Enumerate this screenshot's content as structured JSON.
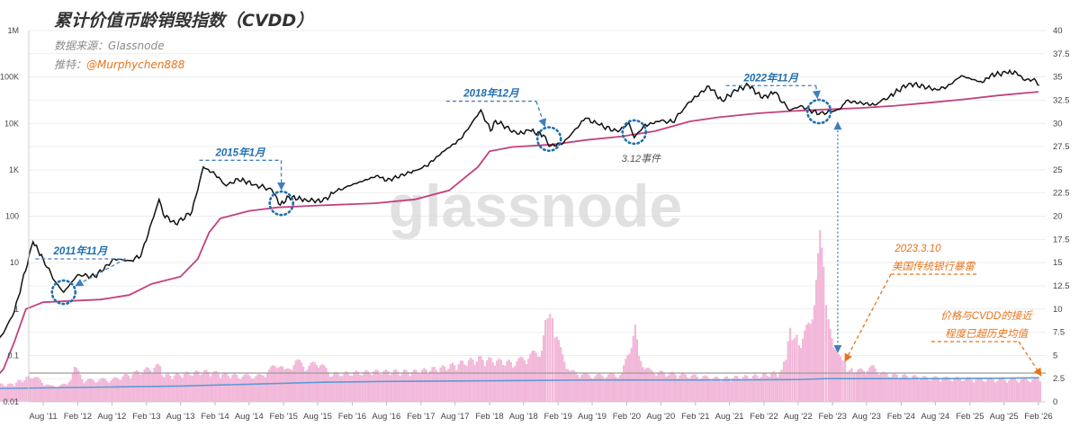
{
  "header": {
    "title": "累计价值币龄销毁指数（CVDD）",
    "source_label": "数据来源：",
    "source_value": "Glassnode",
    "twitter_label": "推特：",
    "twitter_handle": "@Murphychen888"
  },
  "watermark": "glassnode",
  "colors": {
    "price": "#111111",
    "cvdd": "#c4407f",
    "ratio_bar": "#f2b8d9",
    "ratio_line": "#5b9bd5",
    "annotation_blue": "#1f6fb2",
    "annotation_orange": "#e8731a",
    "grid": "#e6e6e6",
    "reference": "#9a9a9a"
  },
  "chart_data": {
    "type": "line",
    "left_axis": {
      "scale": "log",
      "ticks": [
        0.01,
        0.1,
        1,
        10,
        100,
        1000,
        10000,
        100000,
        1000000
      ],
      "tick_labels": [
        "0.01",
        "0.1",
        "1",
        "10",
        "100",
        "1K",
        "10K",
        "100K",
        "1M"
      ]
    },
    "right_axis": {
      "scale": "linear",
      "range": [
        0,
        40
      ],
      "ticks": [
        0,
        2.5,
        5,
        7.5,
        10,
        12.5,
        15,
        17.5,
        20,
        22.5,
        25,
        27.5,
        30,
        32.5,
        35,
        37.5,
        40
      ],
      "tick_labels": [
        "0",
        "2.5",
        "5",
        "7.5",
        "10",
        "12.5",
        "15",
        "17.5",
        "20",
        "22.5",
        "25",
        "27.5",
        "30",
        "32.5",
        "35",
        "37.5",
        "40"
      ]
    },
    "x_axis": {
      "tick_dates": [
        "2011-08",
        "2012-02",
        "2012-08",
        "2013-02",
        "2013-08",
        "2014-02",
        "2014-08",
        "2015-02",
        "2015-08",
        "2016-02",
        "2016-08",
        "2017-02",
        "2017-08",
        "2018-02",
        "2018-08",
        "2019-02",
        "2019-08",
        "2020-02",
        "2020-08",
        "2021-02",
        "2021-08",
        "2022-02",
        "2022-08",
        "2023-02",
        "2023-08",
        "2024-02",
        "2024-08",
        "2025-02",
        "2025-08",
        "2026-02"
      ],
      "tick_labels": [
        "Aug '11",
        "Feb '12",
        "Aug '12",
        "Feb '13",
        "Aug '13",
        "Feb '14",
        "Aug '14",
        "Feb '15",
        "Aug '15",
        "Feb '16",
        "Aug '16",
        "Feb '17",
        "Aug '17",
        "Feb '18",
        "Aug '18",
        "Feb '19",
        "Aug '19",
        "Feb '20",
        "Aug '20",
        "Feb '21",
        "Aug '21",
        "Feb '22",
        "Aug '22",
        "Feb '23",
        "Aug '23",
        "Feb '24",
        "Aug '24",
        "Feb '25",
        "Aug '25",
        "Feb '26"
      ]
    },
    "grid": true,
    "reference_line_value": 3.1,
    "series": [
      {
        "kind": "price",
        "axis": "left",
        "points": [
          [
            "2010-08-01",
            0.07
          ],
          [
            "2010-10-01",
            0.1
          ],
          [
            "2011-01-01",
            0.3
          ],
          [
            "2011-03-01",
            0.9
          ],
          [
            "2011-06-08",
            28
          ],
          [
            "2011-08-01",
            12
          ],
          [
            "2011-10-01",
            4
          ],
          [
            "2011-11-18",
            2.3
          ],
          [
            "2012-02-01",
            5.5
          ],
          [
            "2012-05-01",
            5
          ],
          [
            "2012-08-15",
            12
          ],
          [
            "2012-11-01",
            11
          ],
          [
            "2013-01-01",
            13.5
          ],
          [
            "2013-04-09",
            230
          ],
          [
            "2013-05-01",
            110
          ],
          [
            "2013-07-05",
            68
          ],
          [
            "2013-10-01",
            125
          ],
          [
            "2013-11-30",
            1150
          ],
          [
            "2014-02-01",
            800
          ],
          [
            "2014-04-01",
            450
          ],
          [
            "2014-06-01",
            640
          ],
          [
            "2014-09-01",
            480
          ],
          [
            "2014-12-01",
            370
          ],
          [
            "2015-01-14",
            175
          ],
          [
            "2015-03-01",
            260
          ],
          [
            "2015-06-01",
            225
          ],
          [
            "2015-08-25",
            210
          ],
          [
            "2015-11-01",
            330
          ],
          [
            "2016-01-01",
            430
          ],
          [
            "2016-06-17",
            750
          ],
          [
            "2016-08-01",
            580
          ],
          [
            "2016-12-31",
            965
          ],
          [
            "2017-03-01",
            1200
          ],
          [
            "2017-06-01",
            2500
          ],
          [
            "2017-09-01",
            4600
          ],
          [
            "2017-12-17",
            19500
          ],
          [
            "2018-02-06",
            6900
          ],
          [
            "2018-03-05",
            11500
          ],
          [
            "2018-06-29",
            5900
          ],
          [
            "2018-09-01",
            7000
          ],
          [
            "2018-11-15",
            5600
          ],
          [
            "2018-12-15",
            3200
          ],
          [
            "2019-03-01",
            3800
          ],
          [
            "2019-06-26",
            12900
          ],
          [
            "2019-09-01",
            9500
          ],
          [
            "2019-12-17",
            6600
          ],
          [
            "2020-02-13",
            10300
          ],
          [
            "2020-03-12",
            4900
          ],
          [
            "2020-05-01",
            8800
          ],
          [
            "2020-08-01",
            11500
          ],
          [
            "2020-10-01",
            10600
          ],
          [
            "2020-12-31",
            29000
          ],
          [
            "2021-04-14",
            63000
          ],
          [
            "2021-06-22",
            31000
          ],
          [
            "2021-09-05",
            51000
          ],
          [
            "2021-11-10",
            67000
          ],
          [
            "2022-01-24",
            35000
          ],
          [
            "2022-03-29",
            47000
          ],
          [
            "2022-06-18",
            19000
          ],
          [
            "2022-08-15",
            24000
          ],
          [
            "2022-11-21",
            15800
          ],
          [
            "2023-03-10",
            20000
          ],
          [
            "2023-04-14",
            30500
          ],
          [
            "2023-09-11",
            25000
          ],
          [
            "2023-12-01",
            38500
          ],
          [
            "2024-03-14",
            73000
          ],
          [
            "2024-08-05",
            54000
          ],
          [
            "2024-10-01",
            61000
          ],
          [
            "2024-12-17",
            106000
          ],
          [
            "2025-04-08",
            76000
          ],
          [
            "2025-05-22",
            110000
          ],
          [
            "2025-08-14",
            123000
          ],
          [
            "2025-10-06",
            125000
          ],
          [
            "2025-11-21",
            84000
          ],
          [
            "2026-01-10",
            92000
          ],
          [
            "2026-02-05",
            66000
          ]
        ]
      },
      {
        "kind": "cvdd",
        "axis": "left",
        "points": [
          [
            "2010-08-01",
            0.012
          ],
          [
            "2010-10-01",
            0.02
          ],
          [
            "2011-01-01",
            0.05
          ],
          [
            "2011-03-01",
            0.2
          ],
          [
            "2011-05-01",
            1
          ],
          [
            "2011-08-01",
            1.4
          ],
          [
            "2012-01-01",
            1.5
          ],
          [
            "2012-06-01",
            1.6
          ],
          [
            "2012-11-01",
            2
          ],
          [
            "2013-03-01",
            3.5
          ],
          [
            "2013-08-01",
            5
          ],
          [
            "2013-11-01",
            12
          ],
          [
            "2014-01-01",
            45
          ],
          [
            "2014-03-01",
            90
          ],
          [
            "2014-08-01",
            130
          ],
          [
            "2015-01-01",
            155
          ],
          [
            "2015-08-01",
            170
          ],
          [
            "2016-06-01",
            190
          ],
          [
            "2017-01-01",
            230
          ],
          [
            "2017-07-01",
            360
          ],
          [
            "2017-12-01",
            1150
          ],
          [
            "2018-02-01",
            2500
          ],
          [
            "2018-06-01",
            3100
          ],
          [
            "2019-01-01",
            3500
          ],
          [
            "2019-07-01",
            4400
          ],
          [
            "2020-01-01",
            5200
          ],
          [
            "2020-07-01",
            6800
          ],
          [
            "2021-01-01",
            11000
          ],
          [
            "2021-06-01",
            13500
          ],
          [
            "2022-01-01",
            16500
          ],
          [
            "2022-07-01",
            18500
          ],
          [
            "2023-01-01",
            20000
          ],
          [
            "2023-07-01",
            21500
          ],
          [
            "2024-01-01",
            24000
          ],
          [
            "2024-07-01",
            28000
          ],
          [
            "2025-01-01",
            33000
          ],
          [
            "2025-07-01",
            40000
          ],
          [
            "2026-02-01",
            48000
          ]
        ]
      },
      {
        "kind": "ratio_bars",
        "axis": "right",
        "points": [
          [
            "2010-08-01",
            2
          ],
          [
            "2011-02-01",
            2
          ],
          [
            "2011-06-01",
            3
          ],
          [
            "2011-09-01",
            1.8
          ],
          [
            "2011-12-01",
            2
          ],
          [
            "2012-01-10",
            4
          ],
          [
            "2012-03-01",
            2.5
          ],
          [
            "2012-08-01",
            2.6
          ],
          [
            "2013-04-10",
            4.2
          ],
          [
            "2013-05-01",
            3
          ],
          [
            "2013-12-01",
            3.5
          ],
          [
            "2014-06-01",
            3
          ],
          [
            "2014-10-01",
            3
          ],
          [
            "2015-01-01",
            4.5
          ],
          [
            "2015-02-01",
            3.5
          ],
          [
            "2015-04-01",
            4.8
          ],
          [
            "2015-06-01",
            4
          ],
          [
            "2015-08-01",
            4.7
          ],
          [
            "2015-10-01",
            3.2
          ],
          [
            "2016-06-01",
            3.5
          ],
          [
            "2017-01-01",
            3.5
          ],
          [
            "2017-06-01",
            4
          ],
          [
            "2017-12-01",
            5
          ],
          [
            "2018-06-01",
            4.5
          ],
          [
            "2018-11-01",
            6
          ],
          [
            "2018-11-20",
            9
          ],
          [
            "2018-12-15",
            10.5
          ],
          [
            "2019-01-10",
            8
          ],
          [
            "2019-02-10",
            6
          ],
          [
            "2019-04-01",
            3.5
          ],
          [
            "2019-08-01",
            3
          ],
          [
            "2020-01-01",
            3.2
          ],
          [
            "2020-03-12",
            8.5
          ],
          [
            "2020-04-01",
            5
          ],
          [
            "2020-06-01",
            3.5
          ],
          [
            "2021-06-01",
            2.7
          ],
          [
            "2022-01-01",
            3
          ],
          [
            "2022-05-01",
            3.5
          ],
          [
            "2022-06-15",
            8
          ],
          [
            "2022-08-01",
            7
          ],
          [
            "2022-10-01",
            9
          ],
          [
            "2022-11-01",
            14
          ],
          [
            "2022-11-21",
            18.5
          ],
          [
            "2022-12-10",
            15
          ],
          [
            "2023-01-05",
            9
          ],
          [
            "2023-02-01",
            6
          ],
          [
            "2023-03-10",
            5.5
          ],
          [
            "2023-04-15",
            3.8
          ],
          [
            "2023-06-01",
            3.5
          ],
          [
            "2023-09-01",
            4
          ],
          [
            "2023-11-01",
            3.2
          ],
          [
            "2024-06-01",
            2.8
          ],
          [
            "2025-06-01",
            2.6
          ],
          [
            "2026-02-05",
            2.6
          ]
        ]
      },
      {
        "kind": "ratio_average",
        "axis": "right",
        "points": [
          [
            "2010-08-01",
            1.4
          ],
          [
            "2011-08-01",
            1.5
          ],
          [
            "2012-08-01",
            1.6
          ],
          [
            "2013-08-01",
            1.7
          ],
          [
            "2014-08-01",
            1.9
          ],
          [
            "2015-08-01",
            2.1
          ],
          [
            "2016-08-01",
            2.2
          ],
          [
            "2017-08-01",
            2.25
          ],
          [
            "2018-08-01",
            2.3
          ],
          [
            "2019-08-01",
            2.35
          ],
          [
            "2020-08-01",
            2.35
          ],
          [
            "2021-08-01",
            2.35
          ],
          [
            "2022-08-01",
            2.4
          ],
          [
            "2023-01-01",
            2.5
          ],
          [
            "2023-08-01",
            2.5
          ],
          [
            "2024-08-01",
            2.5
          ],
          [
            "2025-08-01",
            2.55
          ],
          [
            "2026-02-05",
            2.6
          ]
        ]
      }
    ],
    "annotations": {
      "circles": [
        {
          "date": "2011-11-18",
          "value": 2.3,
          "label": "2011年11月",
          "label_date": "2012-02-15",
          "label_value": 12
        },
        {
          "date": "2015-01-20",
          "value": 190,
          "label": "2015年1月",
          "label_date": "2014-06-15",
          "label_value": 1600
        },
        {
          "date": "2018-12-15",
          "value": 4600,
          "label": "2018年12月",
          "label_date": "2018-02-10",
          "label_value": 30000
        },
        {
          "date": "2020-03-12",
          "value": 6500,
          "label": "3.12事件",
          "label_date": "2020-03-20",
          "label_value": 1600
        },
        {
          "date": "2022-11-21",
          "value": 18000,
          "label": "2022年11月",
          "label_date": "2022-03-10",
          "label_value": 65000
        }
      ],
      "svb_event": {
        "date": "2023-03-10",
        "lines": [
          "2023.3.10",
          "美国传统银行暴雷"
        ]
      },
      "proximity_note": {
        "lines": [
          "价格与CVDD的接近",
          "程度已超历史均值"
        ]
      }
    }
  }
}
